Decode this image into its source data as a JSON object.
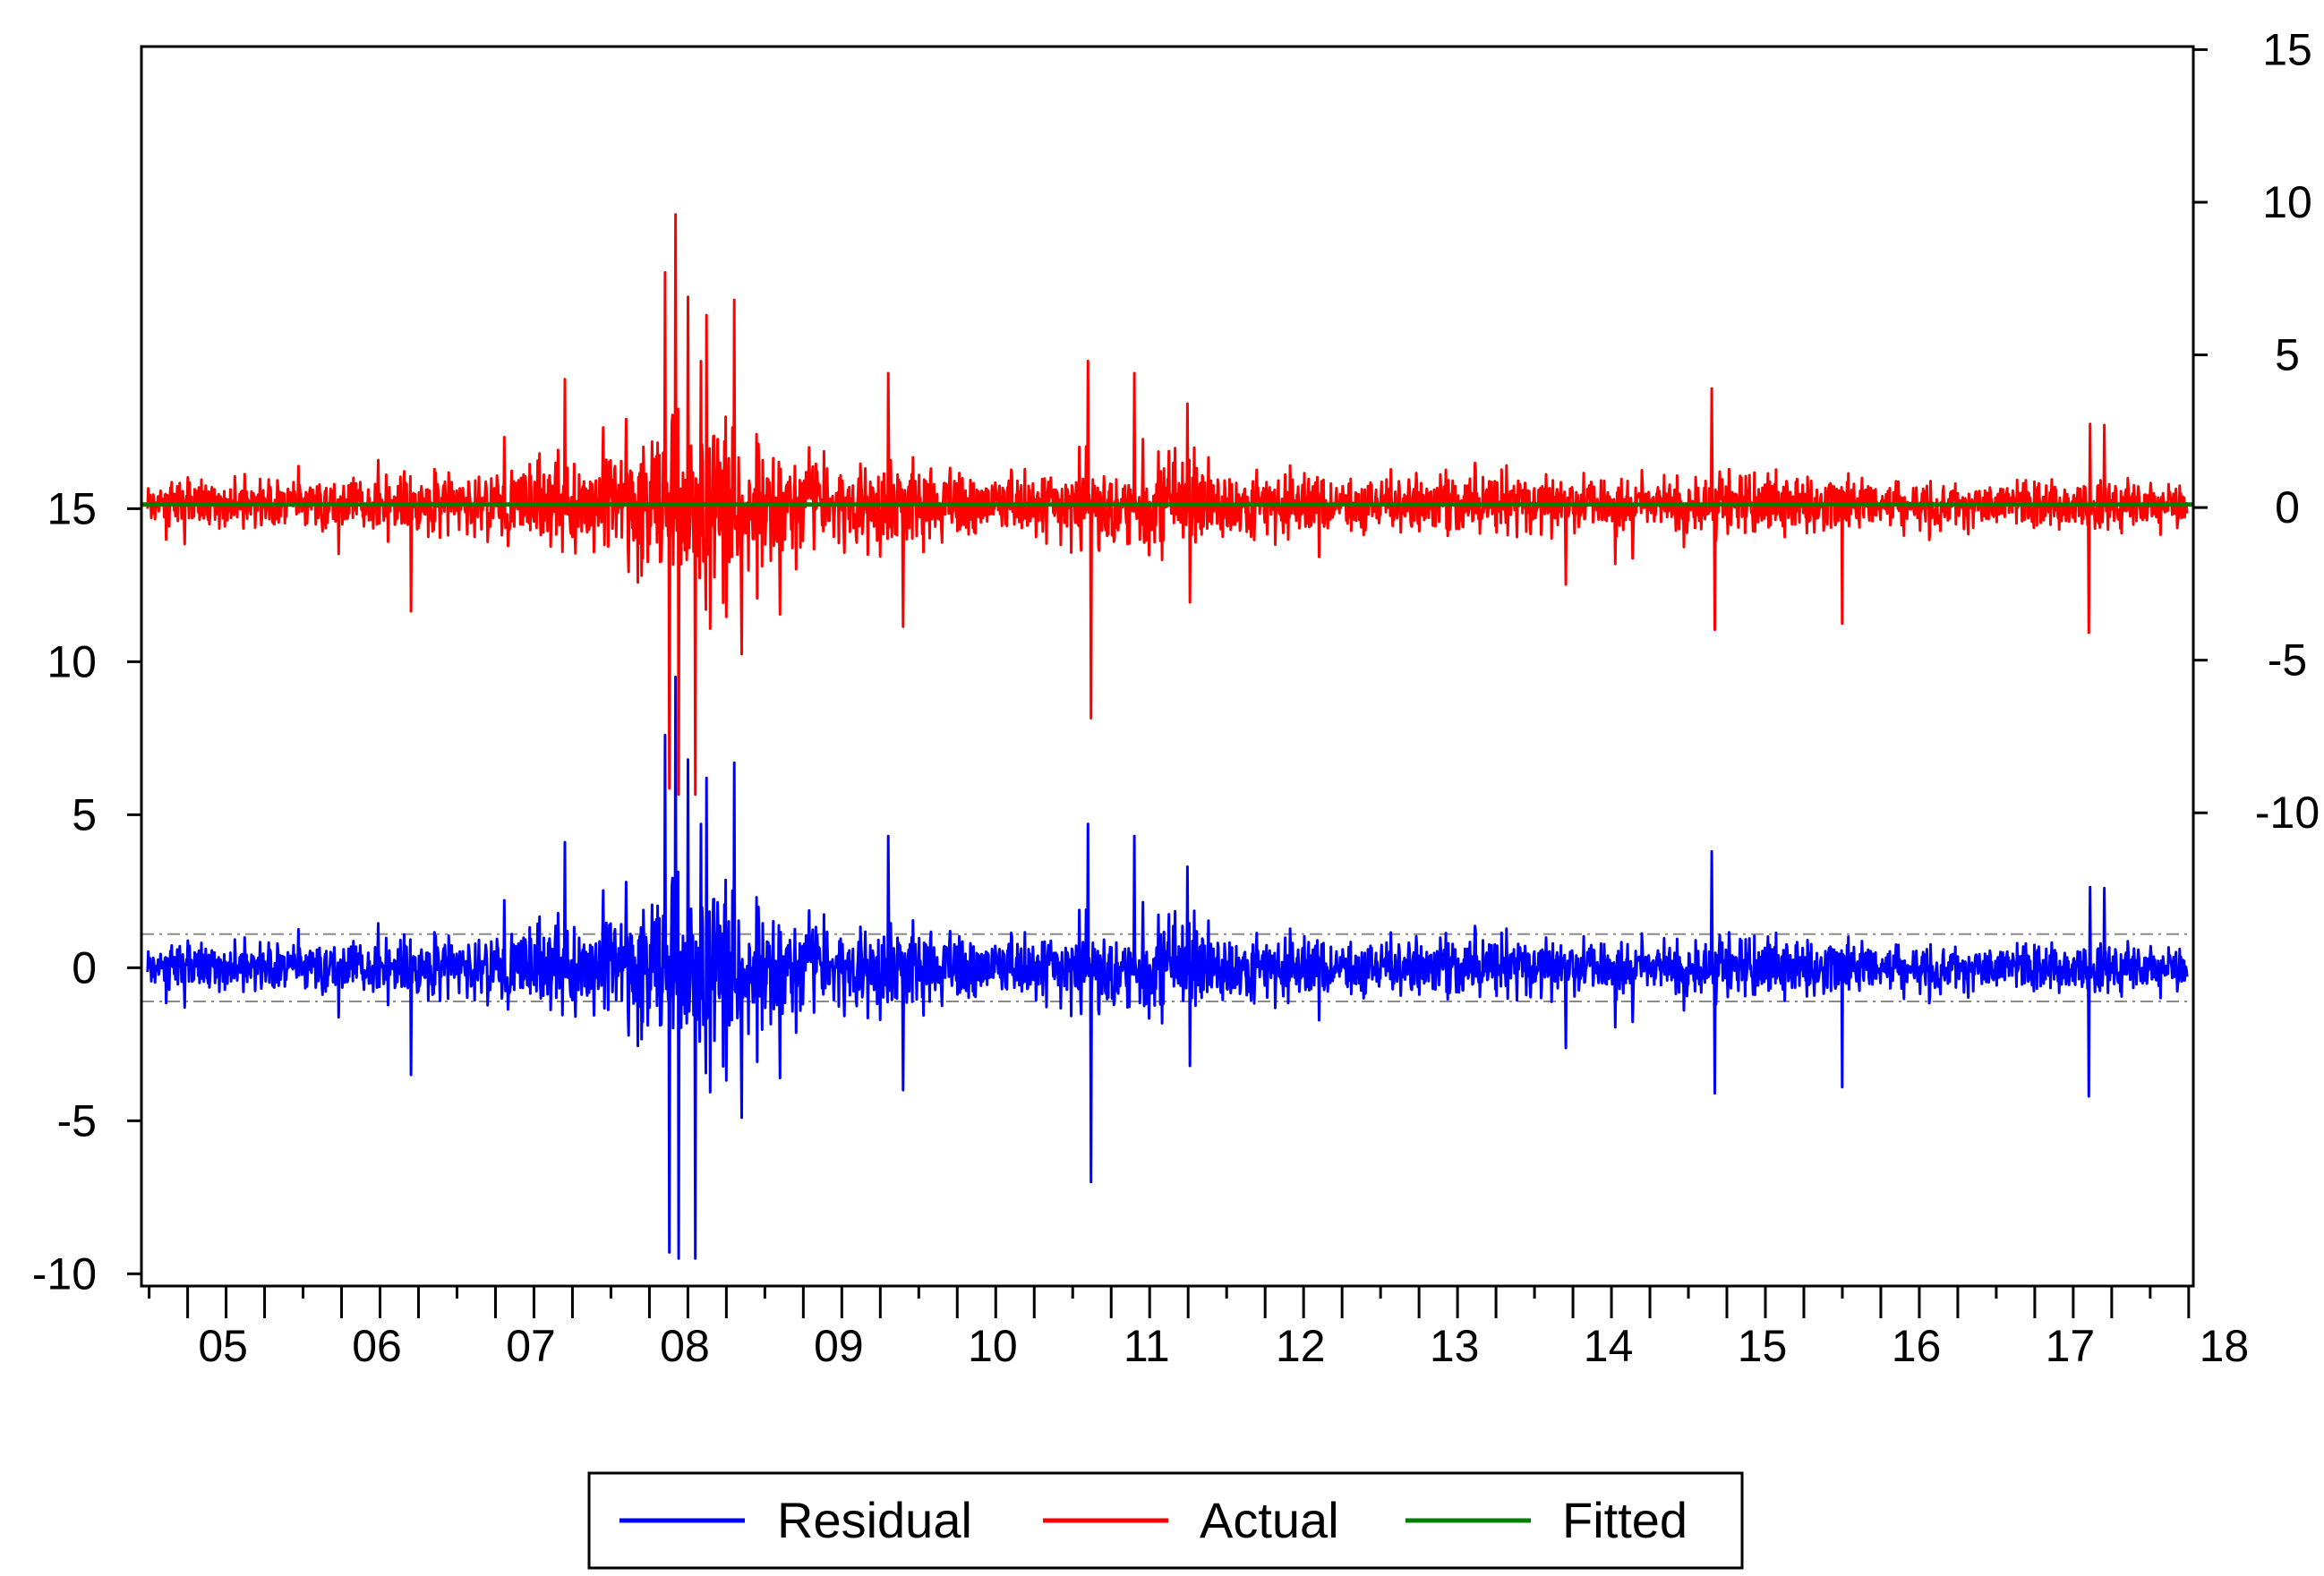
{
  "chart_data": {
    "type": "line",
    "title": "",
    "xlabel": "",
    "ylabel_left": "",
    "ylabel_right": "",
    "x_axis": {
      "start": 2004.95,
      "end": 2018.28,
      "tick_labels": [
        "05",
        "06",
        "07",
        "08",
        "09",
        "10",
        "11",
        "12",
        "13",
        "14",
        "15",
        "16",
        "17",
        "18"
      ],
      "tick_years": [
        2005,
        2006,
        2007,
        2008,
        2009,
        2010,
        2011,
        2012,
        2013,
        2014,
        2015,
        2016,
        2017,
        2018
      ]
    },
    "left_axis": {
      "ylim": [
        -10.4,
        30.1
      ],
      "ticks": [
        -10,
        -5,
        0,
        5,
        10,
        15
      ],
      "tick_labels": [
        "-10",
        "-5",
        "0",
        "5",
        "10",
        "15"
      ],
      "reference_lines": [
        1.1,
        -1.1
      ]
    },
    "right_axis": {
      "ylim": [
        -25.5,
        15.1
      ],
      "ticks": [
        -10,
        -5,
        0,
        5,
        10,
        15
      ],
      "tick_labels": [
        "-10",
        "-5",
        "0",
        "5",
        "10",
        "15"
      ]
    },
    "series": [
      {
        "name": "Residual",
        "axis": "left",
        "color": "#0000ff",
        "volatility_profile": [
          {
            "x": 2005.0,
            "amp": 0.75
          },
          {
            "x": 2006.0,
            "amp": 0.85
          },
          {
            "x": 2007.0,
            "amp": 1.1
          },
          {
            "x": 2007.5,
            "amp": 1.6
          },
          {
            "x": 2008.0,
            "amp": 1.8
          },
          {
            "x": 2008.35,
            "amp": 3.2
          },
          {
            "x": 2008.6,
            "amp": 4.2
          },
          {
            "x": 2008.9,
            "amp": 2.6
          },
          {
            "x": 2009.3,
            "amp": 1.5
          },
          {
            "x": 2009.9,
            "amp": 1.5
          },
          {
            "x": 2010.5,
            "amp": 1.2
          },
          {
            "x": 2011.1,
            "amp": 1.3
          },
          {
            "x": 2011.6,
            "amp": 2.0
          },
          {
            "x": 2012.0,
            "amp": 1.3
          },
          {
            "x": 2013.0,
            "amp": 1.0
          },
          {
            "x": 2014.0,
            "amp": 1.0
          },
          {
            "x": 2015.0,
            "amp": 1.0
          },
          {
            "x": 2015.3,
            "amp": 1.4
          },
          {
            "x": 2016.0,
            "amp": 1.0
          },
          {
            "x": 2017.0,
            "amp": 0.8
          },
          {
            "x": 2017.6,
            "amp": 1.0
          },
          {
            "x": 2018.3,
            "amp": 0.75
          }
        ],
        "spikes": [
          {
            "x": 2006.7,
            "value": -3.5
          },
          {
            "x": 2007.7,
            "value": 4.1
          },
          {
            "x": 2008.1,
            "value": 2.8
          },
          {
            "x": 2008.35,
            "value": 7.6
          },
          {
            "x": 2008.38,
            "value": -9.3
          },
          {
            "x": 2008.42,
            "value": 9.5
          },
          {
            "x": 2008.44,
            "value": -9.5
          },
          {
            "x": 2008.5,
            "value": 6.8
          },
          {
            "x": 2008.55,
            "value": -9.5
          },
          {
            "x": 2008.62,
            "value": 6.2
          },
          {
            "x": 2008.8,
            "value": 6.7
          },
          {
            "x": 2008.85,
            "value": -4.9
          },
          {
            "x": 2009.1,
            "value": -3.6
          },
          {
            "x": 2009.8,
            "value": 4.3
          },
          {
            "x": 2009.9,
            "value": -4.0
          },
          {
            "x": 2011.1,
            "value": 4.7
          },
          {
            "x": 2011.12,
            "value": -7.0
          },
          {
            "x": 2011.4,
            "value": 4.3
          },
          {
            "x": 2015.15,
            "value": 3.8
          },
          {
            "x": 2015.17,
            "value": -4.1
          },
          {
            "x": 2016.0,
            "value": -3.9
          },
          {
            "x": 2017.6,
            "value": -4.2
          },
          {
            "x": 2017.7,
            "value": 2.6
          }
        ]
      },
      {
        "name": "Actual",
        "axis": "right",
        "color": "#ff0000",
        "same_shape_as": "Residual"
      },
      {
        "name": "Fitted",
        "axis": "right",
        "color": "#008000",
        "constant_value": 0.1
      }
    ],
    "legend": {
      "position": "bottom-center",
      "entries": [
        "Residual",
        "Actual",
        "Fitted"
      ],
      "colors": [
        "#0000ff",
        "#ff0000",
        "#008000"
      ]
    },
    "grid": false
  }
}
